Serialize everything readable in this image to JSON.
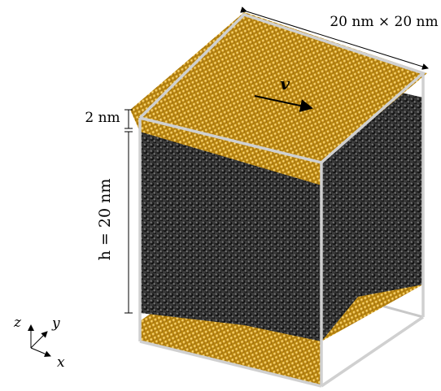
{
  "labels": {
    "plate_size": "20 nm × 20 nm",
    "velocity": "v",
    "plate_thickness": "2 nm",
    "height": "h = 20 nm"
  },
  "axes": {
    "z": "z",
    "y": "y",
    "x": "x"
  }
}
